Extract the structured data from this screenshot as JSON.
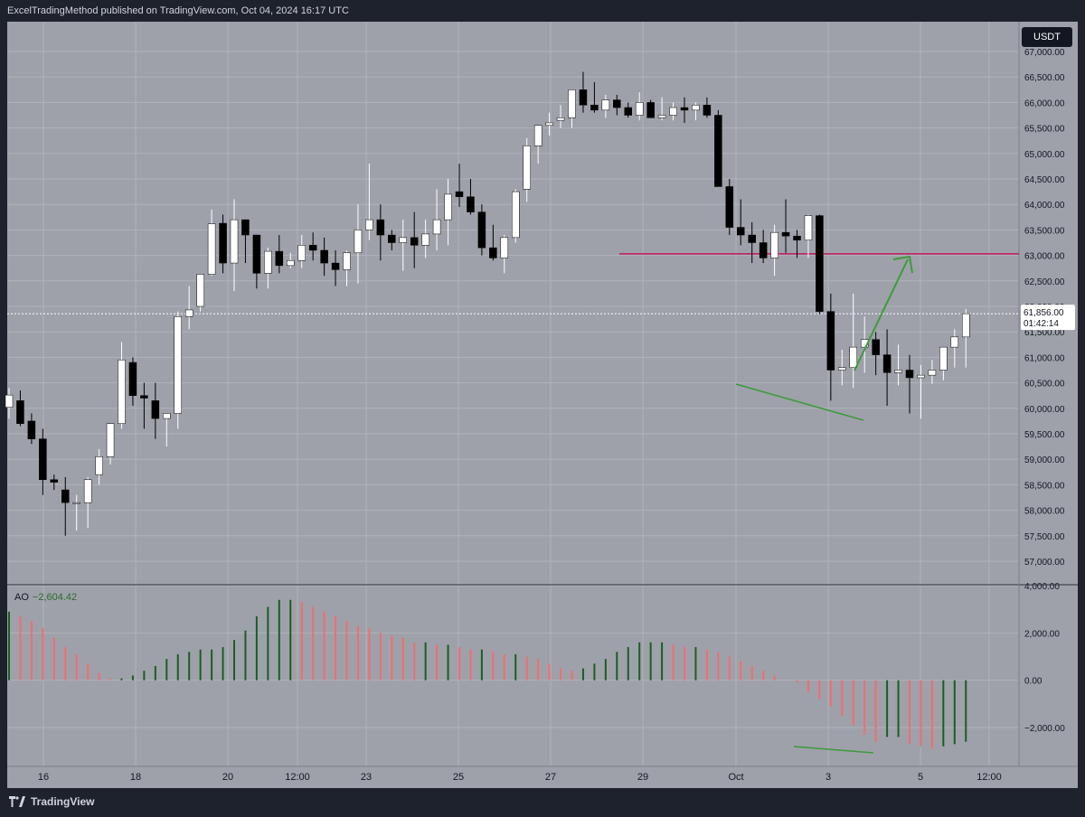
{
  "header": {
    "published_text": "ExcelTradingMethod published on TradingView.com, Oct 04, 2024 16:17 UTC"
  },
  "currency_button": {
    "label": "USDT"
  },
  "footer": {
    "brand": "TradingView",
    "logo_icon": "tradingview-logo-icon"
  },
  "price_label": {
    "value": "61,856.00",
    "countdown": "01:42:14"
  },
  "indicator": {
    "name": "AO",
    "value": "−2,604.42"
  },
  "colors": {
    "up": "#ffffff",
    "down": "#000000",
    "ao_up": "#1b5e20",
    "ao_down": "#f26d6d",
    "resistance": "#c2185b",
    "arrow": "#3d9a3d",
    "divergence": "#3d9a3d"
  },
  "chart_data": [
    {
      "type": "candlestick",
      "ylim": [
        56600,
        67200
      ],
      "y_ticks": [
        "57,000.00",
        "57,500.00",
        "58,000.00",
        "58,500.00",
        "59,000.00",
        "59,500.00",
        "60,000.00",
        "60,500.00",
        "61,000.00",
        "61,500.00",
        "62,000.00",
        "62,500.00",
        "63,000.00",
        "63,500.00",
        "64,000.00",
        "64,500.00",
        "65,000.00",
        "65,500.00",
        "66,000.00",
        "66,500.00",
        "67,000.00"
      ],
      "x_ticks": [
        "16",
        "18",
        "20",
        "12:00",
        "23",
        "25",
        "27",
        "29",
        "Oct",
        "3",
        "5",
        "12:00"
      ],
      "resistance_level": 63030,
      "current_price": 61856,
      "candles": [
        [
          60020,
          60400,
          59800,
          60260
        ],
        [
          60150,
          60350,
          59650,
          59700
        ],
        [
          59750,
          59900,
          59300,
          59400
        ],
        [
          59400,
          59600,
          58300,
          58600
        ],
        [
          58600,
          58700,
          58400,
          58550
        ],
        [
          58400,
          58650,
          57500,
          58150
        ],
        [
          58150,
          58300,
          57600,
          58150
        ],
        [
          58150,
          58650,
          57650,
          58600
        ],
        [
          58700,
          59200,
          58500,
          59050
        ],
        [
          59050,
          59600,
          58900,
          59700
        ],
        [
          59700,
          61300,
          59600,
          60950
        ],
        [
          60900,
          61000,
          60050,
          60250
        ],
        [
          60250,
          60500,
          59600,
          60200
        ],
        [
          60150,
          60500,
          59400,
          59800
        ],
        [
          59800,
          59900,
          59250,
          59900
        ],
        [
          59900,
          61900,
          59600,
          61800
        ],
        [
          61800,
          62400,
          61550,
          61930
        ],
        [
          62000,
          62600,
          61900,
          62630
        ],
        [
          62630,
          63900,
          62600,
          63620
        ],
        [
          63630,
          63800,
          62650,
          62850
        ],
        [
          62850,
          64100,
          62300,
          63700
        ],
        [
          63700,
          63700,
          62850,
          63400
        ],
        [
          63400,
          63400,
          62350,
          62650
        ],
        [
          62650,
          63150,
          62350,
          63080
        ],
        [
          63080,
          63400,
          62650,
          62800
        ],
        [
          62800,
          63050,
          62750,
          62900
        ],
        [
          62900,
          63400,
          62750,
          63200
        ],
        [
          63200,
          63450,
          62900,
          63100
        ],
        [
          63100,
          63350,
          62600,
          62850
        ],
        [
          62850,
          63100,
          62400,
          62720
        ],
        [
          62720,
          63100,
          62400,
          63050
        ],
        [
          63050,
          64000,
          62450,
          63500
        ],
        [
          63500,
          64800,
          63300,
          63700
        ],
        [
          63700,
          64000,
          62900,
          63400
        ],
        [
          63400,
          63500,
          63100,
          63250
        ],
        [
          63250,
          63700,
          62700,
          63350
        ],
        [
          63350,
          63850,
          62750,
          63200
        ],
        [
          63200,
          63700,
          62950,
          63420
        ],
        [
          63420,
          64300,
          63100,
          63700
        ],
        [
          63700,
          64500,
          63200,
          64200
        ],
        [
          64250,
          64800,
          63950,
          64150
        ],
        [
          64150,
          64500,
          63800,
          63850
        ],
        [
          63850,
          64000,
          63000,
          63150
        ],
        [
          63150,
          63600,
          62900,
          62950
        ],
        [
          62950,
          63400,
          62650,
          63350
        ],
        [
          63350,
          64300,
          63250,
          64250
        ],
        [
          64300,
          65300,
          64050,
          65150
        ],
        [
          65150,
          65500,
          64800,
          65550
        ],
        [
          65550,
          65800,
          65350,
          65600
        ],
        [
          65650,
          65950,
          65500,
          65700
        ],
        [
          65700,
          66200,
          65500,
          66250
        ],
        [
          66250,
          66600,
          65800,
          65950
        ],
        [
          65950,
          66400,
          65800,
          65850
        ],
        [
          65850,
          66150,
          65700,
          66050
        ],
        [
          66050,
          66150,
          65750,
          65900
        ],
        [
          65900,
          66000,
          65700,
          65750
        ],
        [
          65750,
          66200,
          65650,
          66000
        ],
        [
          66000,
          66050,
          65700,
          65700
        ],
        [
          65700,
          66100,
          65650,
          65750
        ],
        [
          65750,
          66000,
          65650,
          65900
        ],
        [
          65900,
          66100,
          65600,
          65850
        ],
        [
          65850,
          66000,
          65650,
          65950
        ],
        [
          65950,
          66100,
          65700,
          65750
        ],
        [
          65750,
          65850,
          64350,
          64350
        ],
        [
          64350,
          64500,
          63400,
          63550
        ],
        [
          63550,
          64100,
          63200,
          63400
        ],
        [
          63400,
          63650,
          62850,
          63250
        ],
        [
          63250,
          63500,
          62850,
          62950
        ],
        [
          62950,
          63600,
          62600,
          63450
        ],
        [
          63450,
          64100,
          63050,
          63380
        ],
        [
          63380,
          63500,
          62950,
          63300
        ],
        [
          63300,
          63800,
          62950,
          63780
        ],
        [
          63780,
          63800,
          61850,
          61900
        ],
        [
          61900,
          62250,
          60150,
          60750
        ],
        [
          60750,
          61150,
          60450,
          60800
        ],
        [
          60800,
          62250,
          60400,
          61200
        ],
        [
          61200,
          61800,
          60700,
          61350
        ],
        [
          61350,
          61500,
          60650,
          61050
        ],
        [
          61050,
          61550,
          60050,
          60700
        ],
        [
          60700,
          61250,
          60450,
          60750
        ],
        [
          60750,
          61050,
          59900,
          60600
        ],
        [
          60600,
          60850,
          59800,
          60650
        ],
        [
          60650,
          60950,
          60480,
          60750
        ],
        [
          60750,
          61200,
          60550,
          61200
        ],
        [
          61200,
          61550,
          60800,
          61400
        ],
        [
          61400,
          61950,
          60800,
          61856
        ]
      ]
    },
    {
      "type": "bar",
      "name": "AO",
      "ylim": [
        -3500,
        4000
      ],
      "y_ticks": [
        "4,000.00",
        "2,000.00",
        "0.00",
        "−2,000.00"
      ],
      "values": [
        2900,
        2700,
        2500,
        2200,
        1800,
        1400,
        1100,
        700,
        300,
        80,
        80,
        200,
        400,
        600,
        900,
        1100,
        1200,
        1300,
        1300,
        1400,
        1700,
        2100,
        2700,
        3100,
        3400,
        3400,
        3300,
        3100,
        2900,
        2700,
        2500,
        2300,
        2200,
        2000,
        1900,
        1800,
        1600,
        1600,
        1500,
        1500,
        1400,
        1300,
        1300,
        1200,
        1100,
        1100,
        1000,
        900,
        700,
        500,
        400,
        500,
        700,
        900,
        1200,
        1400,
        1600,
        1600,
        1600,
        1500,
        1400,
        1400,
        1300,
        1200,
        1000,
        800,
        600,
        400,
        200,
        0,
        -100,
        -500,
        -800,
        -1100,
        -1500,
        -1900,
        -2300,
        -2600,
        -2400,
        -2400,
        -2700,
        -2800,
        -2900,
        -2800,
        -2700,
        -2604
      ],
      "colors": "up=green, down=red by change"
    }
  ]
}
